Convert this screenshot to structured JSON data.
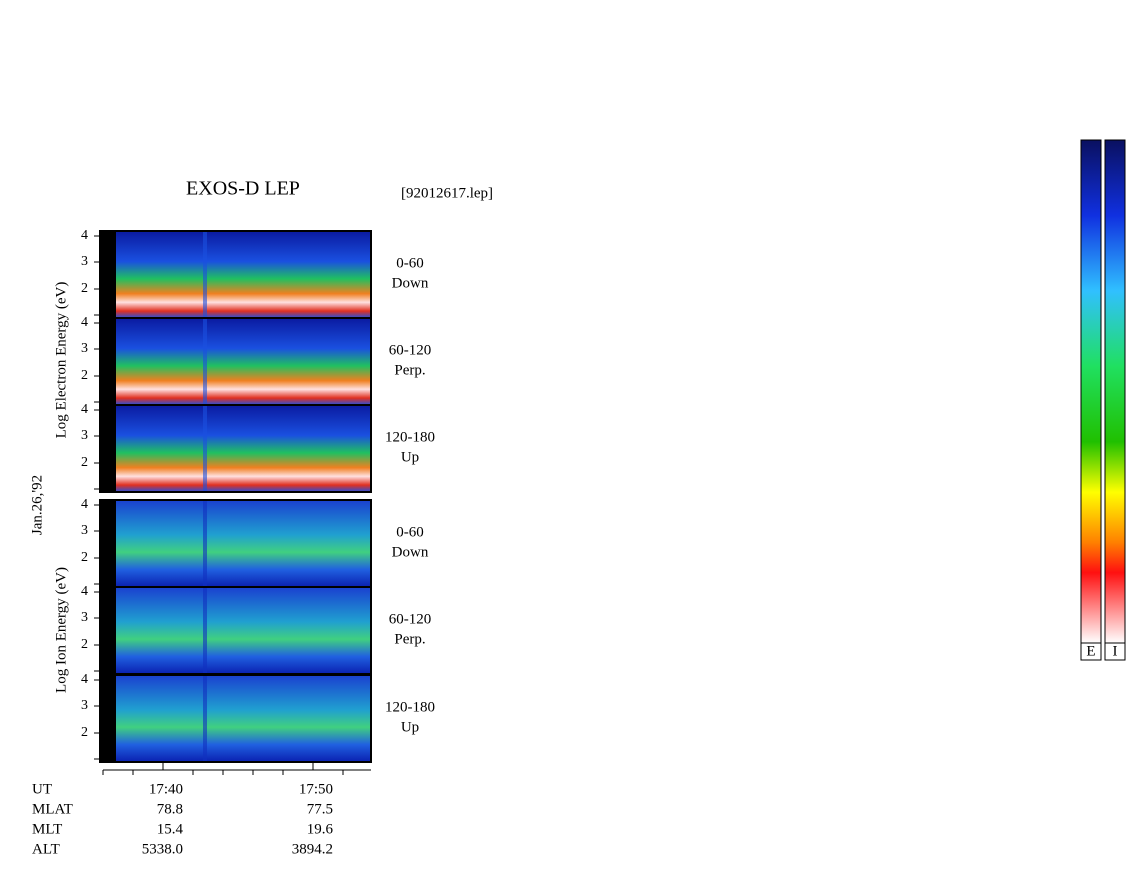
{
  "header": {
    "title": "EXOS-D LEP",
    "file": "[92012617.lep]"
  },
  "side_labels": {
    "electron": "Log Electron Energy (eV)",
    "ion": "Log Ion Energy (eV)",
    "date": "Jan.26,'92"
  },
  "panels": [
    {
      "species": "electron",
      "angle": "0-60",
      "direction": "Down",
      "ticks": [
        4,
        3,
        2
      ]
    },
    {
      "species": "electron",
      "angle": "60-120",
      "direction": "Perp.",
      "ticks": [
        4,
        3,
        2
      ]
    },
    {
      "species": "electron",
      "angle": "120-180",
      "direction": "Up",
      "ticks": [
        4,
        3,
        2
      ]
    },
    {
      "species": "ion",
      "angle": "0-60",
      "direction": "Down",
      "ticks": [
        4,
        3,
        2
      ]
    },
    {
      "species": "ion",
      "angle": "60-120",
      "direction": "Perp.",
      "ticks": [
        4,
        3,
        2
      ]
    },
    {
      "species": "ion",
      "angle": "120-180",
      "direction": "Up",
      "ticks": [
        4,
        3,
        2
      ]
    }
  ],
  "rows": [
    {
      "label": "UT",
      "values": [
        "17:40",
        "17:50"
      ]
    },
    {
      "label": "MLAT",
      "values": [
        "78.8",
        "77.5"
      ]
    },
    {
      "label": "MLT",
      "values": [
        "15.4",
        "19.6"
      ]
    },
    {
      "label": "ALT",
      "values": [
        "5338.0",
        "3894.2"
      ]
    }
  ],
  "colorbars": [
    "E",
    "I"
  ]
}
